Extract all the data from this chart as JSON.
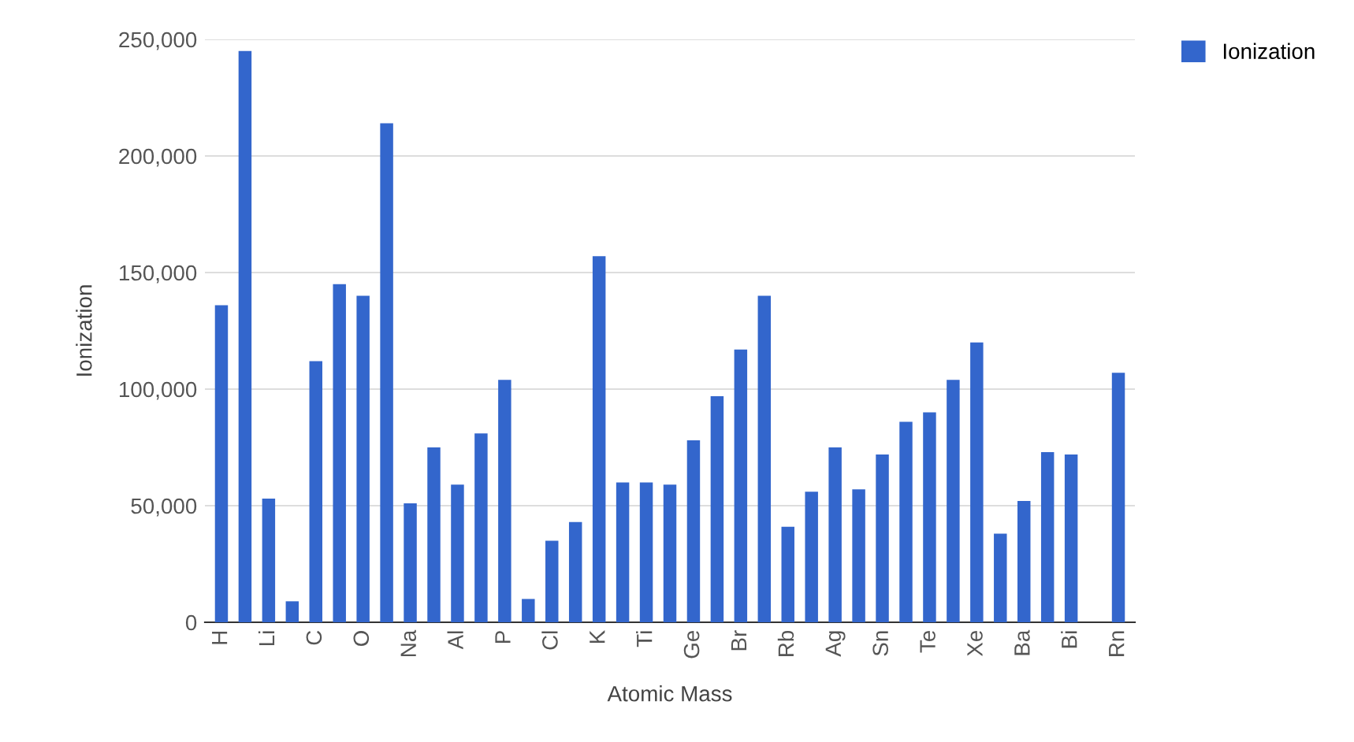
{
  "chart_data": {
    "type": "bar",
    "xlabel": "Atomic Mass",
    "ylabel": "Ionization",
    "categories": [
      "H",
      null,
      "Li",
      null,
      "C",
      null,
      "O",
      null,
      "Na",
      null,
      "Al",
      null,
      "P",
      null,
      "Cl",
      null,
      "K",
      null,
      "Ti",
      null,
      "Ge",
      null,
      "Br",
      null,
      "Rb",
      null,
      "Ag",
      null,
      "Sn",
      null,
      "Te",
      null,
      "Xe",
      null,
      "Ba",
      null,
      "Bi",
      null,
      "Rn"
    ],
    "series": [
      {
        "name": "Ionization",
        "color": "#3366cc",
        "values": [
          136000,
          245000,
          53000,
          9000,
          112000,
          145000,
          140000,
          214000,
          51000,
          75000,
          59000,
          81000,
          104000,
          10000,
          35000,
          43000,
          157000,
          60000,
          60000,
          59000,
          78000,
          97000,
          117000,
          140000,
          41000,
          56000,
          75000,
          57000,
          72000,
          86000,
          90000,
          104000,
          120000,
          38000,
          52000,
          73000,
          72000,
          null,
          107000
        ]
      }
    ],
    "ylim": [
      0,
      250000
    ],
    "yticks": [
      {
        "value": 0,
        "label": "0"
      },
      {
        "value": 50000,
        "label": "50,000"
      },
      {
        "value": 100000,
        "label": "100,000"
      },
      {
        "value": 150000,
        "label": "150,000"
      },
      {
        "value": 200000,
        "label": "200,000"
      },
      {
        "value": 250000,
        "label": "250,000"
      }
    ],
    "grid": "y",
    "legend": "top right"
  }
}
